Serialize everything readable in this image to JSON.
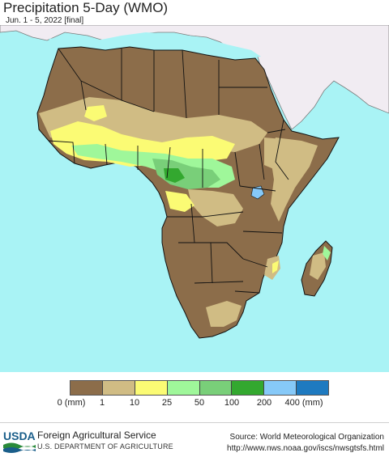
{
  "header": {
    "title": "Precipitation 5-Day (WMO)",
    "subtitle": "Jun. 1 - 5, 2022 [final]"
  },
  "map": {
    "ocean_color": "#a9f3f5",
    "non_africa_land_color": "#f1ecf2",
    "border_color": "#111111"
  },
  "legend": {
    "bins": [
      {
        "color": "#8c6d4a"
      },
      {
        "color": "#d0bc84"
      },
      {
        "color": "#fbfb74"
      },
      {
        "color": "#9ff79a"
      },
      {
        "color": "#79cf79"
      },
      {
        "color": "#33a82f"
      },
      {
        "color": "#86c9f8"
      },
      {
        "color": "#1e7ac0"
      }
    ],
    "labels": [
      "0 (mm)",
      "1",
      "10",
      "25",
      "50",
      "100",
      "200",
      "400 (mm)"
    ]
  },
  "footer": {
    "logo_text": "USDA",
    "agency": "Foreign Agricultural Service",
    "department": "U.S. DEPARTMENT OF AGRICULTURE",
    "source": "Source: World Meteorological Organization",
    "url": "http://www.nws.noaa.gov/iscs/nwsgtsfs.html"
  }
}
